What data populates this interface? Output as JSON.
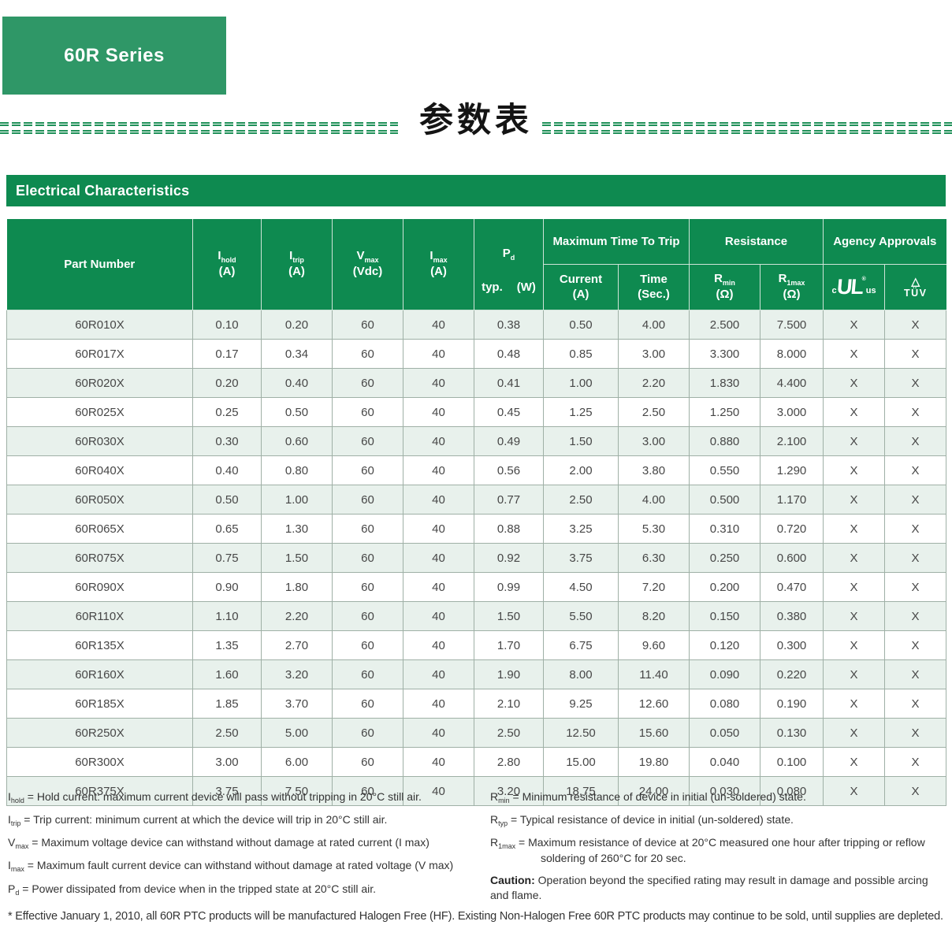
{
  "page": {
    "series_label": "60R Series",
    "title_cn": "参数表",
    "section_title": "Electrical Characteristics",
    "bottom_note": "* Effective January 1, 2010, all 60R PTC products will be manufactured Halogen Free (HF). Existing Non-Halogen Free 60R PTC products may continue to be sold, until supplies are depleted."
  },
  "colors": {
    "badge_green": "#2f9767",
    "bar_green": "#0e8a50",
    "row_shade": "#e8f1ec",
    "grid_border": "#9fb0a6"
  },
  "table": {
    "part_label": "Part Number",
    "simple_cols": [
      {
        "name": "i-hold",
        "sym": "I",
        "sub": "hold",
        "unit": "(A)"
      },
      {
        "name": "i-trip",
        "sym": "I",
        "sub": "trip",
        "unit": "(A)"
      },
      {
        "name": "v-max",
        "sym": "V",
        "sub": "max",
        "unit": "(Vdc)"
      },
      {
        "name": "i-max",
        "sym": "I",
        "sub": "max",
        "unit": "(A)"
      }
    ],
    "pd_col": {
      "name": "p-d",
      "sym": "P",
      "sub": "d",
      "typ_label": "typ.",
      "unit": "(W)"
    },
    "groups": [
      {
        "name": "maximum-time-to-trip",
        "label": "Maximum Time To Trip",
        "children": [
          {
            "name": "current",
            "line1": "Current",
            "line2": "(A)"
          },
          {
            "name": "time",
            "line1": "Time",
            "line2": "(Sec.)"
          }
        ]
      },
      {
        "name": "resistance",
        "label": "Resistance",
        "children": [
          {
            "name": "r-min",
            "sym": "R",
            "sub": "min",
            "unit": "(Ω)"
          },
          {
            "name": "r-1max",
            "sym": "R",
            "sub": "1max",
            "unit": "(Ω)"
          }
        ]
      },
      {
        "name": "agency-approvals",
        "label": "Agency Approvals",
        "children": [
          {
            "name": "c-ul-us",
            "icon": "ul"
          },
          {
            "name": "tuv",
            "icon": "tuv"
          }
        ]
      }
    ],
    "rows": [
      [
        "60R010X",
        "0.10",
        "0.20",
        "60",
        "40",
        "0.38",
        "0.50",
        "4.00",
        "2.500",
        "7.500",
        "X",
        "X"
      ],
      [
        "60R017X",
        "0.17",
        "0.34",
        "60",
        "40",
        "0.48",
        "0.85",
        "3.00",
        "3.300",
        "8.000",
        "X",
        "X"
      ],
      [
        "60R020X",
        "0.20",
        "0.40",
        "60",
        "40",
        "0.41",
        "1.00",
        "2.20",
        "1.830",
        "4.400",
        "X",
        "X"
      ],
      [
        "60R025X",
        "0.25",
        "0.50",
        "60",
        "40",
        "0.45",
        "1.25",
        "2.50",
        "1.250",
        "3.000",
        "X",
        "X"
      ],
      [
        "60R030X",
        "0.30",
        "0.60",
        "60",
        "40",
        "0.49",
        "1.50",
        "3.00",
        "0.880",
        "2.100",
        "X",
        "X"
      ],
      [
        "60R040X",
        "0.40",
        "0.80",
        "60",
        "40",
        "0.56",
        "2.00",
        "3.80",
        "0.550",
        "1.290",
        "X",
        "X"
      ],
      [
        "60R050X",
        "0.50",
        "1.00",
        "60",
        "40",
        "0.77",
        "2.50",
        "4.00",
        "0.500",
        "1.170",
        "X",
        "X"
      ],
      [
        "60R065X",
        "0.65",
        "1.30",
        "60",
        "40",
        "0.88",
        "3.25",
        "5.30",
        "0.310",
        "0.720",
        "X",
        "X"
      ],
      [
        "60R075X",
        "0.75",
        "1.50",
        "60",
        "40",
        "0.92",
        "3.75",
        "6.30",
        "0.250",
        "0.600",
        "X",
        "X"
      ],
      [
        "60R090X",
        "0.90",
        "1.80",
        "60",
        "40",
        "0.99",
        "4.50",
        "7.20",
        "0.200",
        "0.470",
        "X",
        "X"
      ],
      [
        "60R110X",
        "1.10",
        "2.20",
        "60",
        "40",
        "1.50",
        "5.50",
        "8.20",
        "0.150",
        "0.380",
        "X",
        "X"
      ],
      [
        "60R135X",
        "1.35",
        "2.70",
        "60",
        "40",
        "1.70",
        "6.75",
        "9.60",
        "0.120",
        "0.300",
        "X",
        "X"
      ],
      [
        "60R160X",
        "1.60",
        "3.20",
        "60",
        "40",
        "1.90",
        "8.00",
        "11.40",
        "0.090",
        "0.220",
        "X",
        "X"
      ],
      [
        "60R185X",
        "1.85",
        "3.70",
        "60",
        "40",
        "2.10",
        "9.25",
        "12.60",
        "0.080",
        "0.190",
        "X",
        "X"
      ],
      [
        "60R250X",
        "2.50",
        "5.00",
        "60",
        "40",
        "2.50",
        "12.50",
        "15.60",
        "0.050",
        "0.130",
        "X",
        "X"
      ],
      [
        "60R300X",
        "3.00",
        "6.00",
        "60",
        "40",
        "2.80",
        "15.00",
        "19.80",
        "0.040",
        "0.100",
        "X",
        "X"
      ],
      [
        "60R375X",
        "3.75",
        "7.50",
        "60",
        "40",
        "3.20",
        "18.75",
        "24.00",
        "0.030",
        "0.080",
        "X",
        "X"
      ]
    ]
  },
  "icons": {
    "ul": {
      "c": "c",
      "main": "UL",
      "reg": "®",
      "us": "us"
    },
    "tuv": {
      "triangle": "△",
      "label": "TÜV"
    }
  },
  "footnotes": {
    "left": [
      {
        "sym": "I",
        "sub": "hold",
        "text": "= Hold current: maximum current device will pass without tripping in 20°C still air."
      },
      {
        "sym": "I",
        "sub": "trip",
        "text": "= Trip current: minimum current at which the device will trip in 20°C still air."
      },
      {
        "sym": "V",
        "sub": "max",
        "text": "= Maximum voltage device can withstand without damage at rated current (I max)"
      },
      {
        "sym": "I",
        "sub": "max",
        "text": "= Maximum fault current device can withstand without damage at rated voltage (V max)"
      },
      {
        "sym": "P",
        "sub": "d",
        "text": "= Power dissipated from device when in the tripped state at 20°C still air."
      }
    ],
    "right": [
      {
        "sym": "R",
        "sub": "min",
        "text": "= Minimum resistance of device in initial (un-soldered) state."
      },
      {
        "sym": "R",
        "sub": "typ",
        "text": "= Typical resistance of device in initial (un-soldered) state."
      },
      {
        "sym": "R",
        "sub": "1max",
        "text": "= Maximum resistance of device at 20°C measured one hour after tripping or reflow soldering of 260°C for 20 sec."
      }
    ],
    "caution_label": "Caution:",
    "caution_text": " Operation beyond the specified rating may result in damage and possible arcing and flame."
  }
}
